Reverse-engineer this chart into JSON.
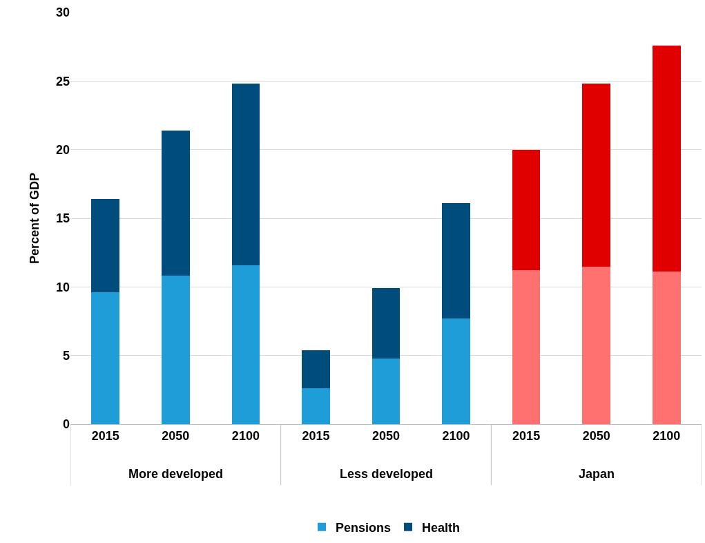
{
  "chart_data": {
    "type": "bar",
    "stacked": true,
    "ylabel": "Percent of GDP",
    "categories": [
      "2015",
      "2050",
      "2100",
      "2015",
      "2050",
      "2100",
      "2015",
      "2050",
      "2100"
    ],
    "annotations": [
      "More developed",
      "Less developed",
      "Japan"
    ],
    "series": [
      {
        "name": "Pensions",
        "color": "#1f9dd9",
        "colors": [
          "#1f9dd9",
          "#1f9dd9",
          "#1f9dd9",
          "#1f9dd9",
          "#1f9dd9",
          "#1f9dd9",
          "#ff7070",
          "#ff7070",
          "#ff7070"
        ],
        "values": [
          9.6,
          10.8,
          11.6,
          2.6,
          4.8,
          7.7,
          11.2,
          11.5,
          11.1
        ]
      },
      {
        "name": "Health",
        "color": "#004c7c",
        "colors": [
          "#004c7c",
          "#004c7c",
          "#004c7c",
          "#004c7c",
          "#004c7c",
          "#004c7c",
          "#e00000",
          "#e00000",
          "#e00000"
        ],
        "values": [
          6.8,
          10.6,
          13.2,
          2.8,
          5.1,
          8.4,
          8.8,
          13.3,
          16.5
        ]
      }
    ],
    "ylim": [
      0,
      30
    ],
    "yticks": [
      0,
      5,
      10,
      15,
      20,
      25,
      30
    ],
    "grid": "y",
    "legend": "bottom"
  }
}
